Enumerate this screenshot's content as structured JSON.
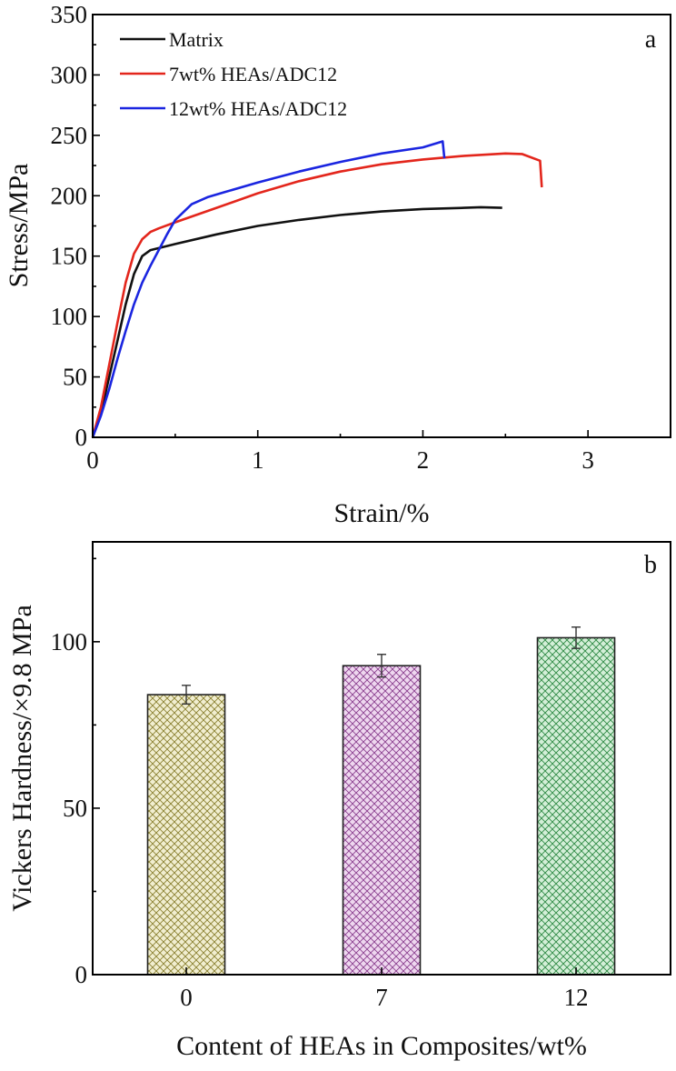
{
  "chart_data": [
    {
      "type": "line",
      "panel_label": "a",
      "xlabel": "Strain/%",
      "ylabel": "Stress/MPa",
      "xlim": [
        0,
        3.5
      ],
      "ylim": [
        0,
        350
      ],
      "x_ticks": [
        0,
        1,
        2,
        3
      ],
      "y_ticks": [
        0,
        50,
        100,
        150,
        200,
        250,
        300,
        350
      ],
      "legend_position": "top-left",
      "series": [
        {
          "name": "Matrix",
          "color": "#111111",
          "points": [
            [
              0,
              0
            ],
            [
              0.05,
              20
            ],
            [
              0.1,
              50
            ],
            [
              0.15,
              80
            ],
            [
              0.2,
              110
            ],
            [
              0.25,
              135
            ],
            [
              0.3,
              150
            ],
            [
              0.35,
              155
            ],
            [
              0.5,
              160
            ],
            [
              0.75,
              168
            ],
            [
              1.0,
              175
            ],
            [
              1.25,
              180
            ],
            [
              1.5,
              184
            ],
            [
              1.75,
              187
            ],
            [
              2.0,
              189
            ],
            [
              2.25,
              190
            ],
            [
              2.35,
              190.5
            ],
            [
              2.48,
              190
            ]
          ]
        },
        {
          "name": "7wt% HEAs/ADC12",
          "color": "#e3261c",
          "points": [
            [
              0,
              0
            ],
            [
              0.05,
              25
            ],
            [
              0.1,
              60
            ],
            [
              0.15,
              95
            ],
            [
              0.2,
              128
            ],
            [
              0.25,
              152
            ],
            [
              0.3,
              164
            ],
            [
              0.35,
              170
            ],
            [
              0.4,
              173
            ],
            [
              0.5,
              178
            ],
            [
              0.75,
              190
            ],
            [
              1.0,
              202
            ],
            [
              1.25,
              212
            ],
            [
              1.5,
              220
            ],
            [
              1.75,
              226
            ],
            [
              2.0,
              230
            ],
            [
              2.25,
              233
            ],
            [
              2.5,
              235
            ],
            [
              2.6,
              234.5
            ],
            [
              2.71,
              229
            ],
            [
              2.72,
              207
            ]
          ]
        },
        {
          "name": "12wt% HEAs/ADC12",
          "color": "#1a25e0",
          "points": [
            [
              0,
              0
            ],
            [
              0.05,
              18
            ],
            [
              0.1,
              40
            ],
            [
              0.15,
              65
            ],
            [
              0.2,
              88
            ],
            [
              0.25,
              110
            ],
            [
              0.3,
              128
            ],
            [
              0.35,
              142
            ],
            [
              0.4,
              155
            ],
            [
              0.45,
              168
            ],
            [
              0.5,
              180
            ],
            [
              0.6,
              193
            ],
            [
              0.7,
              199
            ],
            [
              0.8,
              203
            ],
            [
              1.0,
              211
            ],
            [
              1.25,
              220
            ],
            [
              1.5,
              228
            ],
            [
              1.75,
              235
            ],
            [
              2.0,
              240
            ],
            [
              2.12,
              245
            ],
            [
              2.13,
              231
            ]
          ]
        }
      ]
    },
    {
      "type": "bar",
      "panel_label": "b",
      "xlabel": "Content of HEAs in Composites/wt%",
      "ylabel": "Vickers Hardness/×9.8 MPa",
      "ylim": [
        0,
        130
      ],
      "y_ticks": [
        0,
        50,
        100
      ],
      "categories": [
        "0",
        "7",
        "12"
      ],
      "values": [
        84.1,
        92.8,
        101.2
      ],
      "errors": [
        2.8,
        3.4,
        3.2
      ],
      "colors": [
        "#b0a640",
        "#9c4fa0",
        "#3aa852"
      ]
    }
  ]
}
